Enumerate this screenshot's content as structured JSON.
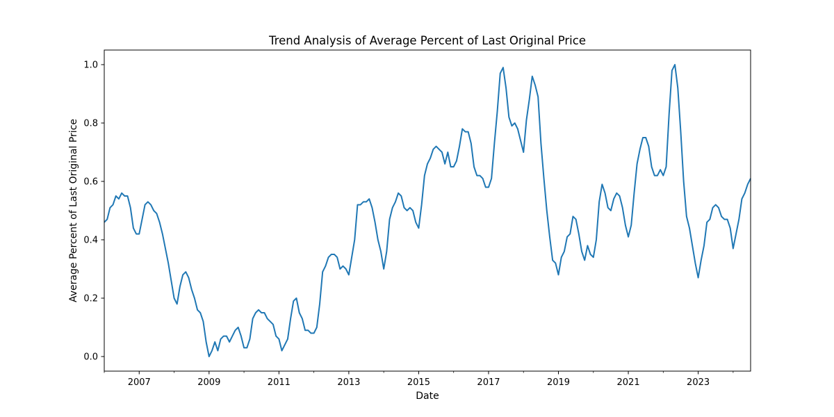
{
  "chart_data": {
    "type": "line",
    "title": "Trend Analysis of Average Percent of Last Original Price",
    "xlabel": "Date",
    "ylabel": "Average Percent of Last Original Price",
    "xlim": [
      "2006-01",
      "2024-07"
    ],
    "ylim": [
      -0.05,
      1.05
    ],
    "x_ticks": [
      "2007",
      "2009",
      "2011",
      "2013",
      "2015",
      "2017",
      "2019",
      "2021",
      "2023"
    ],
    "y_ticks": [
      "0.0",
      "0.2",
      "0.4",
      "0.6",
      "0.8",
      "1.0"
    ],
    "grid": false,
    "legend": "none",
    "series": [
      {
        "color": "#1f77b4",
        "x": [
          "2006-01",
          "2006-02",
          "2006-03",
          "2006-04",
          "2006-05",
          "2006-06",
          "2006-07",
          "2006-08",
          "2006-09",
          "2006-10",
          "2006-11",
          "2006-12",
          "2007-01",
          "2007-02",
          "2007-03",
          "2007-04",
          "2007-05",
          "2007-06",
          "2007-07",
          "2007-08",
          "2007-09",
          "2007-10",
          "2007-11",
          "2007-12",
          "2008-01",
          "2008-02",
          "2008-03",
          "2008-04",
          "2008-05",
          "2008-06",
          "2008-07",
          "2008-08",
          "2008-09",
          "2008-10",
          "2008-11",
          "2008-12",
          "2009-01",
          "2009-02",
          "2009-03",
          "2009-04",
          "2009-05",
          "2009-06",
          "2009-07",
          "2009-08",
          "2009-09",
          "2009-10",
          "2009-11",
          "2009-12",
          "2010-01",
          "2010-02",
          "2010-03",
          "2010-04",
          "2010-05",
          "2010-06",
          "2010-07",
          "2010-08",
          "2010-09",
          "2010-10",
          "2010-11",
          "2010-12",
          "2011-01",
          "2011-02",
          "2011-03",
          "2011-04",
          "2011-05",
          "2011-06",
          "2011-07",
          "2011-08",
          "2011-09",
          "2011-10",
          "2011-11",
          "2011-12",
          "2012-01",
          "2012-02",
          "2012-03",
          "2012-04",
          "2012-05",
          "2012-06",
          "2012-07",
          "2012-08",
          "2012-09",
          "2012-10",
          "2012-11",
          "2012-12",
          "2013-01",
          "2013-02",
          "2013-03",
          "2013-04",
          "2013-05",
          "2013-06",
          "2013-07",
          "2013-08",
          "2013-09",
          "2013-10",
          "2013-11",
          "2013-12",
          "2014-01",
          "2014-02",
          "2014-03",
          "2014-04",
          "2014-05",
          "2014-06",
          "2014-07",
          "2014-08",
          "2014-09",
          "2014-10",
          "2014-11",
          "2014-12",
          "2015-01",
          "2015-02",
          "2015-03",
          "2015-04",
          "2015-05",
          "2015-06",
          "2015-07",
          "2015-08",
          "2015-09",
          "2015-10",
          "2015-11",
          "2015-12",
          "2016-01",
          "2016-02",
          "2016-03",
          "2016-04",
          "2016-05",
          "2016-06",
          "2016-07",
          "2016-08",
          "2016-09",
          "2016-10",
          "2016-11",
          "2016-12",
          "2017-01",
          "2017-02",
          "2017-03",
          "2017-04",
          "2017-05",
          "2017-06",
          "2017-07",
          "2017-08",
          "2017-09",
          "2017-10",
          "2017-11",
          "2017-12",
          "2018-01",
          "2018-02",
          "2018-03",
          "2018-04",
          "2018-05",
          "2018-06",
          "2018-07",
          "2018-08",
          "2018-09",
          "2018-10",
          "2018-11",
          "2018-12",
          "2019-01",
          "2019-02",
          "2019-03",
          "2019-04",
          "2019-05",
          "2019-06",
          "2019-07",
          "2019-08",
          "2019-09",
          "2019-10",
          "2019-11",
          "2019-12",
          "2020-01",
          "2020-02",
          "2020-03",
          "2020-04",
          "2020-05",
          "2020-06",
          "2020-07",
          "2020-08",
          "2020-09",
          "2020-10",
          "2020-11",
          "2020-12",
          "2021-01",
          "2021-02",
          "2021-03",
          "2021-04",
          "2021-05",
          "2021-06",
          "2021-07",
          "2021-08",
          "2021-09",
          "2021-10",
          "2021-11",
          "2021-12",
          "2022-01",
          "2022-02",
          "2022-03",
          "2022-04",
          "2022-05",
          "2022-06",
          "2022-07",
          "2022-08",
          "2022-09",
          "2022-10",
          "2022-11",
          "2022-12",
          "2023-01",
          "2023-02",
          "2023-03",
          "2023-04",
          "2023-05",
          "2023-06",
          "2023-07",
          "2023-08",
          "2023-09",
          "2023-10",
          "2023-11",
          "2023-12",
          "2024-01",
          "2024-02",
          "2024-03",
          "2024-04",
          "2024-05",
          "2024-06",
          "2024-07"
        ],
        "values": [
          0.46,
          0.47,
          0.51,
          0.52,
          0.55,
          0.54,
          0.56,
          0.55,
          0.55,
          0.51,
          0.44,
          0.42,
          0.42,
          0.47,
          0.52,
          0.53,
          0.52,
          0.5,
          0.49,
          0.46,
          0.42,
          0.37,
          0.32,
          0.26,
          0.2,
          0.18,
          0.24,
          0.28,
          0.29,
          0.27,
          0.23,
          0.2,
          0.16,
          0.15,
          0.12,
          0.05,
          0.0,
          0.02,
          0.05,
          0.02,
          0.06,
          0.07,
          0.07,
          0.05,
          0.07,
          0.09,
          0.1,
          0.07,
          0.03,
          0.03,
          0.06,
          0.13,
          0.15,
          0.16,
          0.15,
          0.15,
          0.13,
          0.12,
          0.11,
          0.07,
          0.06,
          0.02,
          0.04,
          0.06,
          0.13,
          0.19,
          0.2,
          0.15,
          0.13,
          0.09,
          0.09,
          0.08,
          0.08,
          0.1,
          0.18,
          0.29,
          0.31,
          0.34,
          0.35,
          0.35,
          0.34,
          0.3,
          0.31,
          0.3,
          0.28,
          0.34,
          0.4,
          0.52,
          0.52,
          0.53,
          0.53,
          0.54,
          0.51,
          0.46,
          0.4,
          0.36,
          0.3,
          0.36,
          0.47,
          0.51,
          0.53,
          0.56,
          0.55,
          0.51,
          0.5,
          0.51,
          0.5,
          0.46,
          0.44,
          0.52,
          0.62,
          0.66,
          0.68,
          0.71,
          0.72,
          0.71,
          0.7,
          0.66,
          0.7,
          0.65,
          0.65,
          0.67,
          0.72,
          0.78,
          0.77,
          0.77,
          0.73,
          0.65,
          0.62,
          0.62,
          0.61,
          0.58,
          0.58,
          0.61,
          0.73,
          0.84,
          0.97,
          0.99,
          0.92,
          0.82,
          0.79,
          0.8,
          0.78,
          0.74,
          0.7,
          0.81,
          0.88,
          0.96,
          0.93,
          0.89,
          0.73,
          0.61,
          0.5,
          0.41,
          0.33,
          0.32,
          0.28,
          0.34,
          0.36,
          0.41,
          0.42,
          0.48,
          0.47,
          0.42,
          0.36,
          0.33,
          0.38,
          0.35,
          0.34,
          0.4,
          0.53,
          0.59,
          0.56,
          0.51,
          0.5,
          0.54,
          0.56,
          0.55,
          0.51,
          0.45,
          0.41,
          0.45,
          0.56,
          0.66,
          0.71,
          0.75,
          0.75,
          0.72,
          0.65,
          0.62,
          0.62,
          0.64,
          0.62,
          0.65,
          0.83,
          0.98,
          1.0,
          0.92,
          0.77,
          0.6,
          0.48,
          0.44,
          0.38,
          0.32,
          0.27,
          0.33,
          0.38,
          0.46,
          0.47,
          0.51,
          0.52,
          0.51,
          0.48,
          0.47,
          0.47,
          0.44,
          0.37,
          0.42,
          0.47,
          0.54,
          0.56,
          0.59,
          0.61
        ]
      }
    ]
  }
}
